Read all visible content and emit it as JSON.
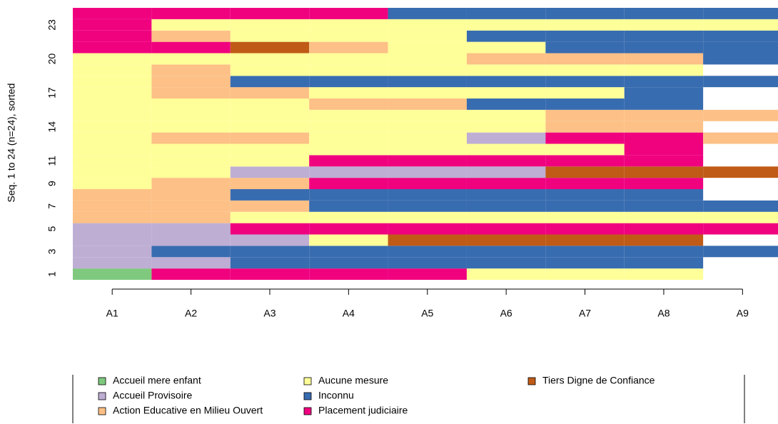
{
  "chart_data": {
    "type": "sequence_index",
    "ylabel": "Seq. 1 to 24 (n=24), sorted",
    "categories": [
      "A1",
      "A2",
      "A3",
      "A4",
      "A5",
      "A6",
      "A7",
      "A8",
      "A9"
    ],
    "yticks": [
      1,
      3,
      5,
      7,
      9,
      11,
      14,
      17,
      20,
      23
    ],
    "states": [
      {
        "name": "Accueil mere enfant",
        "color": "#7fc97f"
      },
      {
        "name": "Accueil Provisoire",
        "color": "#beaed4"
      },
      {
        "name": "Action Educative en Milieu Ouvert",
        "color": "#fdc086"
      },
      {
        "name": "Aucune mesure",
        "color": "#ffff99"
      },
      {
        "name": "Inconnu",
        "color": "#386cb0"
      },
      {
        "name": "Placement judiciaire",
        "color": "#f0027f"
      },
      {
        "name": "Tiers Digne de Confiance",
        "color": "#bf5b17"
      }
    ],
    "sequences": [
      [
        0,
        5,
        5,
        5,
        5,
        3,
        3,
        3,
        null
      ],
      [
        1,
        1,
        4,
        4,
        4,
        4,
        4,
        4,
        null
      ],
      [
        1,
        4,
        4,
        4,
        4,
        4,
        4,
        4,
        4
      ],
      [
        1,
        1,
        1,
        3,
        6,
        6,
        6,
        6,
        null
      ],
      [
        1,
        1,
        5,
        5,
        5,
        5,
        5,
        5,
        5
      ],
      [
        2,
        2,
        3,
        3,
        3,
        3,
        3,
        3,
        3
      ],
      [
        2,
        2,
        2,
        4,
        4,
        4,
        4,
        4,
        4
      ],
      [
        2,
        2,
        4,
        4,
        4,
        4,
        4,
        4,
        null
      ],
      [
        3,
        2,
        2,
        5,
        5,
        5,
        5,
        5,
        null
      ],
      [
        3,
        3,
        1,
        1,
        1,
        1,
        6,
        6,
        6
      ],
      [
        3,
        3,
        3,
        5,
        5,
        5,
        5,
        5,
        null
      ],
      [
        3,
        3,
        3,
        3,
        3,
        3,
        3,
        5,
        null
      ],
      [
        3,
        2,
        2,
        3,
        3,
        1,
        5,
        5,
        2
      ],
      [
        3,
        3,
        3,
        3,
        3,
        3,
        2,
        2,
        null
      ],
      [
        3,
        3,
        3,
        3,
        3,
        3,
        2,
        2,
        2
      ],
      [
        3,
        3,
        3,
        2,
        2,
        4,
        4,
        4,
        null
      ],
      [
        3,
        2,
        2,
        3,
        3,
        3,
        3,
        4,
        null
      ],
      [
        3,
        2,
        4,
        4,
        4,
        4,
        4,
        4,
        4
      ],
      [
        3,
        2,
        3,
        3,
        3,
        3,
        3,
        3,
        null
      ],
      [
        3,
        3,
        3,
        3,
        3,
        2,
        2,
        2,
        4
      ],
      [
        5,
        5,
        6,
        2,
        3,
        3,
        4,
        4,
        4
      ],
      [
        5,
        2,
        3,
        3,
        3,
        4,
        4,
        4,
        4
      ],
      [
        5,
        3,
        3,
        3,
        3,
        3,
        3,
        3,
        3
      ],
      [
        5,
        5,
        5,
        5,
        4,
        4,
        4,
        4,
        4
      ]
    ]
  }
}
